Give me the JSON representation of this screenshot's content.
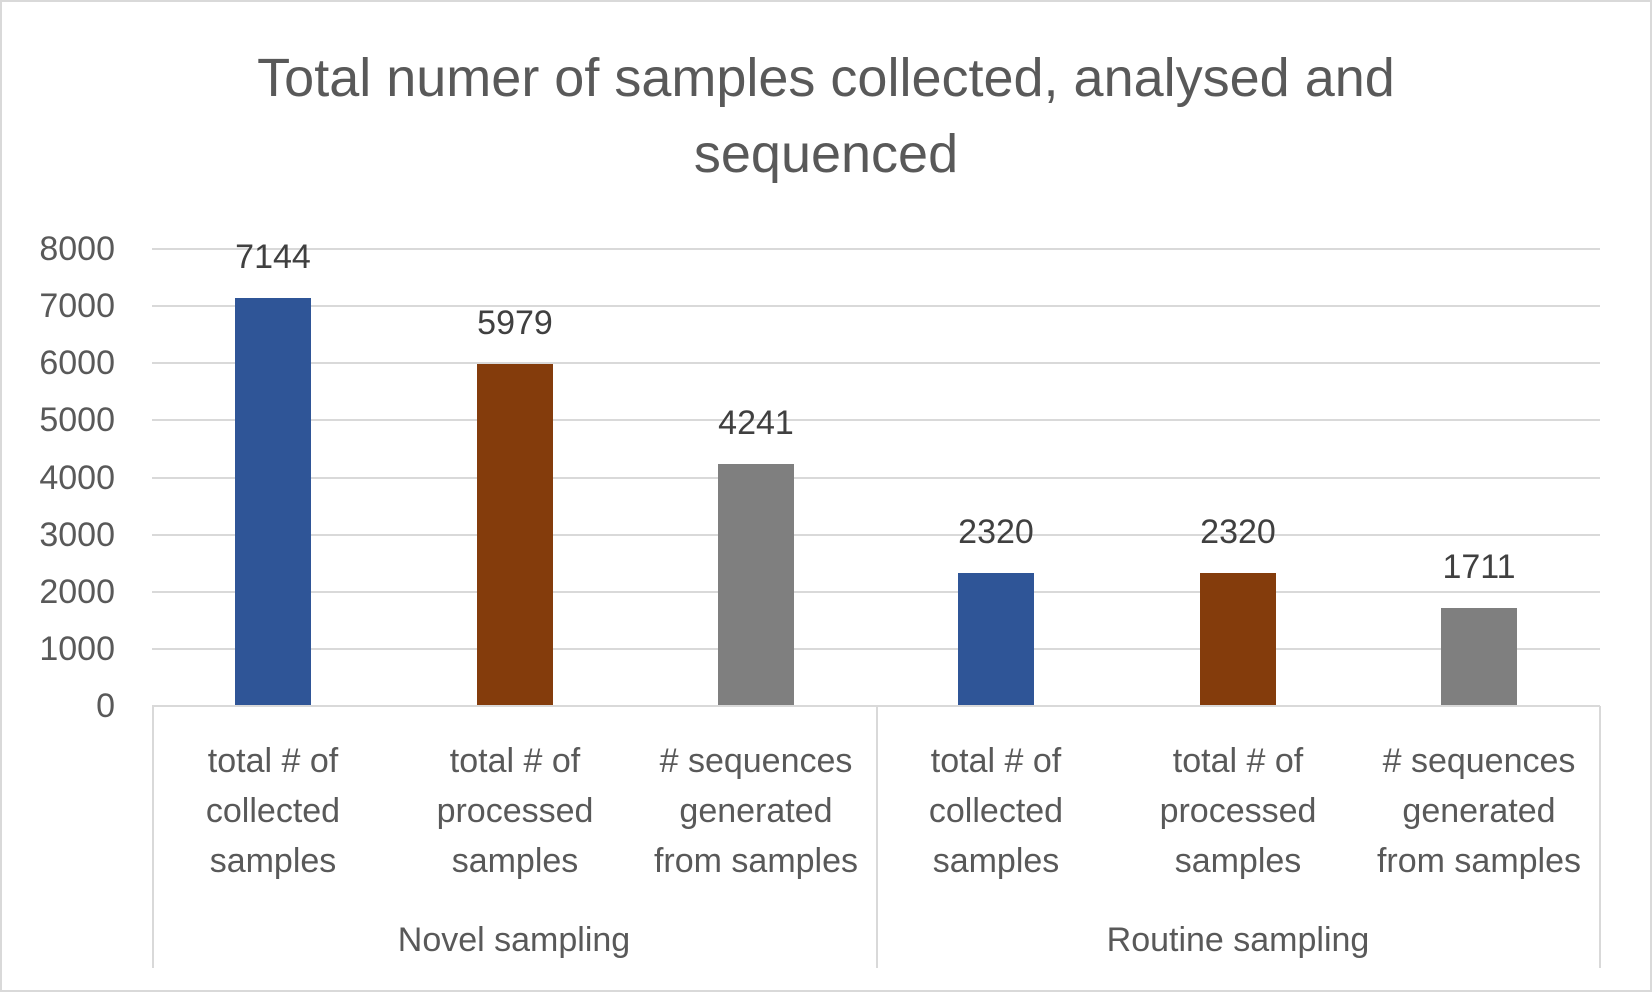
{
  "chart_data": {
    "type": "bar",
    "title": "Total numer of samples collected, analysed and sequenced",
    "title_lines": [
      "Total numer of samples collected, analysed and",
      "sequenced"
    ],
    "xlabel": "",
    "ylabel": "",
    "ylim": [
      0,
      8000
    ],
    "yticks": [
      "0",
      "1000",
      "2000",
      "3000",
      "4000",
      "5000",
      "6000",
      "7000",
      "8000"
    ],
    "grid": true,
    "legend": null,
    "groups": [
      {
        "name": "Novel sampling",
        "categories": [
          "total # of collected samples",
          "total # of processed samples",
          "# sequences generated from samples"
        ]
      },
      {
        "name": "Routine sampling",
        "categories": [
          "total # of collected samples",
          "total # of processed samples",
          "# sequences generated from samples"
        ]
      }
    ],
    "categories": [
      "Novel sampling / total # of collected samples",
      "Novel sampling / total # of processed samples",
      "Novel sampling / # sequences generated from samples",
      "Routine sampling / total # of collected samples",
      "Routine sampling / total # of processed samples",
      "Routine sampling / # sequences generated from samples"
    ],
    "values": [
      7144,
      5979,
      4241,
      2320,
      2320,
      1711
    ],
    "data_labels": [
      "7144",
      "5979",
      "4241",
      "2320",
      "2320",
      "1711"
    ],
    "bar_colors": [
      "#2f5597",
      "#843c0c",
      "#7f7f7f",
      "#2f5597",
      "#843c0c",
      "#7f7f7f"
    ],
    "category_label_lines": [
      [
        "total # of",
        "collected",
        "samples"
      ],
      [
        "total # of",
        "processed",
        "samples"
      ],
      [
        "# sequences",
        "generated",
        "from samples"
      ],
      [
        "total # of",
        "collected",
        "samples"
      ],
      [
        "total # of",
        "processed",
        "samples"
      ],
      [
        "# sequences",
        "generated",
        "from samples"
      ]
    ]
  }
}
